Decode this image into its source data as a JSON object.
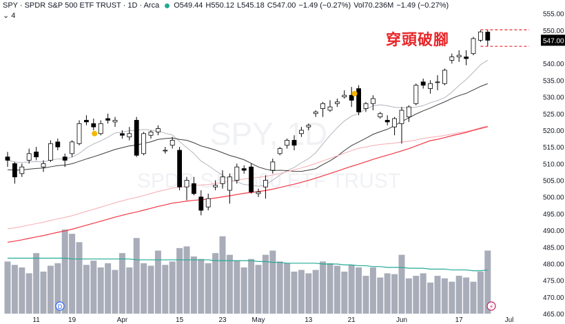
{
  "header": {
    "title": "SPY · SPDR S&P 500 ETF TRUST · 1D · Arca",
    "open": "O549.44",
    "high": "H550.12",
    "low": "L545.18",
    "close": "C547.00",
    "change": "−1.49 (−0.27%)",
    "volume_label": "Vol",
    "volume_value": "70.236M",
    "volume_change": "−1.49 (−0.27%)",
    "indicator_count": "4"
  },
  "annotation": "穿頭破腳",
  "watermark": {
    "symbol": "SPY, 1D",
    "name": "SPDR S&P 500 ETF TRUST"
  },
  "price_label": "547.00",
  "event_markers": {
    "dividend": "D",
    "flash": "⚡"
  },
  "colors": {
    "up_candle": "#ffffff",
    "down_candle": "#000000",
    "volume": "#a9adb9",
    "ma_fast": "#b2b5be",
    "ma_slow": "#3b3b3b",
    "ma_red": "#f23645",
    "ma_pink": "#f7a9b0",
    "vol_ma": "#22ab94",
    "annotation": "#e8262a",
    "marker": "#f5b800"
  },
  "chart_data": {
    "type": "candlestick",
    "ylim": [
      465,
      557
    ],
    "yticks": [
      465,
      470,
      475,
      480,
      485,
      490,
      495,
      500,
      505,
      510,
      515,
      520,
      525,
      530,
      535,
      540,
      545,
      550,
      555
    ],
    "xticks": [
      {
        "i": 4,
        "label": "11"
      },
      {
        "i": 9,
        "label": "19"
      },
      {
        "i": 16,
        "label": "Apr"
      },
      {
        "i": 24,
        "label": "15"
      },
      {
        "i": 30,
        "label": "23"
      },
      {
        "i": 35,
        "label": "May"
      },
      {
        "i": 42,
        "label": "13"
      },
      {
        "i": 48,
        "label": "21"
      },
      {
        "i": 55,
        "label": "Jun"
      },
      {
        "i": 63,
        "label": "17"
      },
      {
        "i": 70,
        "label": "Jul"
      }
    ],
    "candles": [
      [
        512.0,
        513.5,
        509.0,
        511.0
      ],
      [
        510.0,
        510.5,
        504.0,
        506.0
      ],
      [
        507.0,
        510.0,
        506.0,
        509.0
      ],
      [
        511.0,
        514.5,
        510.0,
        513.0
      ],
      [
        513.5,
        515.0,
        511.0,
        512.0
      ],
      [
        509.0,
        511.0,
        507.5,
        510.0
      ],
      [
        511.0,
        517.0,
        510.5,
        516.0
      ],
      [
        516.5,
        517.5,
        514.0,
        515.0
      ],
      [
        512.0,
        513.0,
        509.0,
        511.0
      ],
      [
        513.0,
        517.0,
        512.0,
        516.5
      ],
      [
        516.0,
        523.0,
        515.5,
        522.0
      ],
      [
        523.0,
        524.5,
        521.5,
        522.5
      ],
      [
        522.0,
        523.5,
        520.0,
        521.0
      ],
      [
        519.0,
        523.0,
        518.5,
        522.0
      ],
      [
        523.5,
        525.0,
        522.0,
        523.0
      ],
      [
        522.5,
        524.0,
        521.0,
        523.0
      ],
      [
        519.0,
        520.0,
        517.5,
        518.5
      ],
      [
        518.0,
        521.0,
        517.0,
        519.0
      ],
      [
        523.0,
        524.0,
        512.0,
        512.5
      ],
      [
        513.0,
        519.5,
        512.5,
        519.0
      ],
      [
        518.5,
        520.0,
        517.5,
        519.5
      ],
      [
        519.5,
        521.5,
        518.5,
        520.5
      ],
      [
        514.0,
        515.0,
        513.0,
        514.0
      ],
      [
        515.5,
        518.0,
        514.5,
        517.0
      ],
      [
        514.0,
        515.0,
        502.0,
        503.0
      ],
      [
        503.0,
        506.0,
        499.0,
        505.0
      ],
      [
        504.0,
        506.0,
        500.5,
        501.0
      ],
      [
        500.0,
        502.0,
        494.5,
        496.0
      ],
      [
        497.0,
        501.0,
        496.0,
        499.5
      ],
      [
        503.0,
        505.0,
        502.0,
        503.5
      ],
      [
        504.0,
        508.0,
        502.5,
        506.0
      ],
      [
        502.0,
        507.0,
        498.0,
        506.0
      ],
      [
        505.0,
        510.0,
        504.0,
        509.0
      ],
      [
        508.5,
        509.5,
        507.0,
        508.0
      ],
      [
        509.0,
        510.0,
        501.0,
        501.5
      ],
      [
        501.0,
        502.5,
        500.0,
        501.5
      ],
      [
        503.0,
        506.5,
        499.5,
        505.0
      ],
      [
        508.0,
        511.5,
        507.0,
        510.5
      ],
      [
        513.0,
        515.0,
        512.5,
        514.5
      ],
      [
        515.5,
        517.5,
        514.5,
        517.0
      ],
      [
        517.0,
        518.5,
        514.0,
        515.5
      ],
      [
        519.0,
        521.0,
        518.0,
        520.0
      ],
      [
        521.0,
        522.0,
        520.0,
        521.5
      ],
      [
        525.0,
        526.0,
        524.0,
        525.5
      ],
      [
        526.5,
        528.5,
        524.0,
        528.0
      ],
      [
        526.0,
        529.0,
        525.5,
        527.0
      ],
      [
        528.0,
        529.5,
        527.0,
        528.5
      ],
      [
        530.0,
        532.0,
        529.5,
        530.5
      ],
      [
        530.5,
        533.0,
        527.0,
        529.0
      ],
      [
        532.5,
        533.5,
        524.5,
        525.5
      ],
      [
        526.5,
        528.5,
        525.5,
        528.0
      ],
      [
        528.0,
        530.5,
        526.0,
        529.5
      ],
      [
        524.0,
        525.5,
        523.5,
        525.0
      ],
      [
        523.0,
        524.5,
        521.5,
        522.5
      ],
      [
        521.0,
        524.0,
        518.5,
        523.5
      ],
      [
        522.0,
        527.0,
        516.0,
        526.0
      ],
      [
        524.0,
        527.5,
        522.5,
        527.0
      ],
      [
        528.0,
        534.0,
        527.5,
        533.5
      ],
      [
        534.5,
        535.5,
        532.5,
        533.5
      ],
      [
        532.5,
        535.0,
        531.0,
        534.0
      ],
      [
        534.5,
        536.5,
        532.0,
        534.5
      ],
      [
        534.0,
        538.5,
        533.5,
        538.0
      ],
      [
        541.0,
        543.0,
        540.0,
        542.0
      ],
      [
        542.0,
        544.0,
        540.5,
        542.5
      ],
      [
        542.0,
        544.0,
        539.5,
        541.5
      ],
      [
        543.0,
        548.0,
        542.5,
        547.5
      ],
      [
        547.0,
        550.0,
        546.5,
        549.5
      ],
      [
        549.44,
        550.12,
        545.18,
        547.0
      ]
    ],
    "volume": [
      0.62,
      0.58,
      0.55,
      0.48,
      0.72,
      0.5,
      0.57,
      0.6,
      1.0,
      0.95,
      0.85,
      0.58,
      0.63,
      0.55,
      0.6,
      0.52,
      0.72,
      0.55,
      0.9,
      0.6,
      0.57,
      0.75,
      0.58,
      0.62,
      0.78,
      0.8,
      0.68,
      0.65,
      0.6,
      0.72,
      0.92,
      0.7,
      0.63,
      0.55,
      0.65,
      0.58,
      0.7,
      0.75,
      0.62,
      0.6,
      0.5,
      0.52,
      0.48,
      0.52,
      0.62,
      0.6,
      0.57,
      0.5,
      0.58,
      0.55,
      0.45,
      0.55,
      0.43,
      0.48,
      0.47,
      0.7,
      0.42,
      0.45,
      0.48,
      0.37,
      0.45,
      0.42,
      0.38,
      0.45,
      0.43,
      0.38,
      0.5,
      0.75
    ],
    "volume_ma": [
      0.66,
      0.66,
      0.66,
      0.66,
      0.66,
      0.66,
      0.66,
      0.66,
      0.66,
      0.65,
      0.65,
      0.65,
      0.65,
      0.65,
      0.65,
      0.65,
      0.65,
      0.65,
      0.64,
      0.64,
      0.64,
      0.64,
      0.64,
      0.64,
      0.64,
      0.64,
      0.64,
      0.64,
      0.64,
      0.63,
      0.63,
      0.63,
      0.63,
      0.63,
      0.63,
      0.62,
      0.62,
      0.61,
      0.61,
      0.6,
      0.6,
      0.6,
      0.6,
      0.6,
      0.59,
      0.59,
      0.59,
      0.58,
      0.58,
      0.57,
      0.57,
      0.56,
      0.56,
      0.55,
      0.55,
      0.55,
      0.54,
      0.54,
      0.54,
      0.53,
      0.53,
      0.53,
      0.52,
      0.52,
      0.52,
      0.51,
      0.51,
      0.52
    ]
  }
}
